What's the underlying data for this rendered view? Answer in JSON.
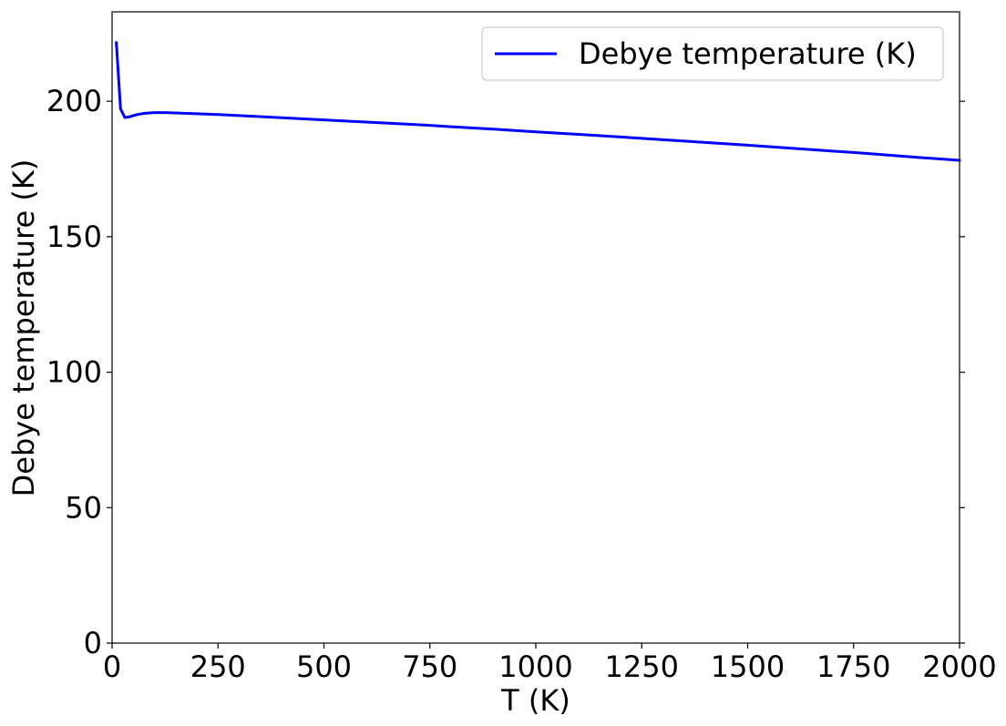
{
  "chart_data": {
    "type": "line",
    "title": "",
    "xlabel": "T (K)",
    "ylabel": "Debye temperature (K)",
    "xlim": [
      0,
      2000
    ],
    "ylim": [
      0,
      233
    ],
    "x_ticks": [
      0,
      250,
      500,
      750,
      1000,
      1250,
      1500,
      1750,
      2000
    ],
    "y_ticks": [
      0,
      50,
      100,
      150,
      200
    ],
    "grid": false,
    "legend_position": "top-right",
    "series": [
      {
        "name": "Debye temperature (K)",
        "color": "#0000ff",
        "x": [
          10,
          20,
          30,
          40,
          50,
          60,
          70,
          80,
          100,
          125,
          150,
          200,
          250,
          300,
          400,
          500,
          600,
          700,
          750,
          800,
          900,
          1000,
          1100,
          1200,
          1250,
          1300,
          1400,
          1500,
          1600,
          1700,
          1750,
          1800,
          1900,
          2000
        ],
        "y": [
          221.7,
          197.2,
          194.0,
          194.2,
          194.7,
          195.1,
          195.4,
          195.6,
          195.8,
          195.8,
          195.7,
          195.4,
          195.1,
          194.7,
          193.9,
          193.1,
          192.3,
          191.5,
          191.1,
          190.6,
          189.7,
          188.7,
          187.8,
          186.8,
          186.3,
          185.8,
          184.8,
          183.8,
          182.7,
          181.6,
          181.1,
          180.5,
          179.3,
          178.2
        ]
      }
    ]
  }
}
